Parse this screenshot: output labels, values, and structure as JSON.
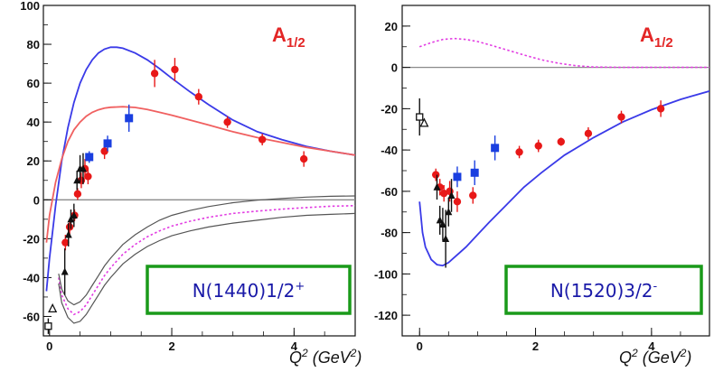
{
  "colors": {
    "theory_blue": "#3a3ae8",
    "theory_red": "#f06060",
    "theory_magenta": "#e23be2",
    "band_grey": "#555555",
    "data_red": "#e81818",
    "data_blue": "#1a3fe0",
    "data_black": "#111111",
    "label_box": "#1a9a1a",
    "label_text": "#1a1aa8",
    "annotation": "#e32626"
  },
  "chart_data": [
    {
      "type": "scatter",
      "panel": "left",
      "annotation": "A1/2",
      "annotation_main": "A",
      "annotation_sub": "1/2",
      "state_label": "N(1440)1/2+",
      "xlabel": "Q2 (GeV2)",
      "xlabel_parts": {
        "q": "Q",
        "q_sup": "2",
        "unit_open": " (GeV",
        "unit_sup": "2",
        "unit_close": ")"
      },
      "xlim": [
        -0.1,
        5.0
      ],
      "ylim": [
        -70,
        100
      ],
      "x_ticks": [
        0,
        2,
        4
      ],
      "y_ticks": [
        -60,
        -40,
        -20,
        0,
        20,
        40,
        60,
        80,
        100
      ],
      "zero_line": true,
      "series": [
        {
          "color": "blue",
          "style": "solid-line",
          "x": [
            -0.05,
            0.0,
            0.1,
            0.2,
            0.3,
            0.4,
            0.5,
            0.6,
            0.7,
            0.8,
            0.9,
            1.0,
            1.1,
            1.2,
            1.4,
            1.6,
            1.8,
            2.0,
            2.3,
            2.6,
            3.0,
            3.4,
            3.8,
            4.2,
            4.6,
            5.0
          ],
          "y": [
            -47,
            -30,
            -3,
            20,
            37,
            50,
            60,
            67,
            72,
            75.5,
            77.5,
            78.5,
            78.5,
            78,
            75.5,
            72,
            67.5,
            62.5,
            55.5,
            49,
            41,
            35,
            31,
            27.5,
            25,
            23
          ]
        },
        {
          "color": "red",
          "style": "solid-line",
          "x": [
            -0.05,
            0.0,
            0.1,
            0.2,
            0.3,
            0.4,
            0.5,
            0.6,
            0.7,
            0.8,
            0.9,
            1.0,
            1.2,
            1.4,
            1.6,
            1.8,
            2.0,
            2.3,
            2.6,
            3.0,
            3.4,
            3.8,
            4.2,
            4.6,
            5.0
          ],
          "y": [
            -22,
            -8,
            9,
            21,
            30,
            36,
            40,
            43,
            45,
            46.3,
            47.2,
            47.6,
            47.9,
            47.5,
            46.5,
            45,
            43.5,
            41,
            38.5,
            35,
            32,
            29.5,
            27,
            25,
            23
          ]
        },
        {
          "color": "magenta",
          "style": "dotted-line",
          "x": [
            0.15,
            0.2,
            0.3,
            0.4,
            0.5,
            0.6,
            0.7,
            0.8,
            0.9,
            1.0,
            1.2,
            1.4,
            1.6,
            1.8,
            2.0,
            2.3,
            2.6,
            3.0,
            3.4,
            3.8,
            4.2,
            4.6,
            5.0
          ],
          "y": [
            -40,
            -49,
            -56,
            -59,
            -57.5,
            -54,
            -49,
            -44,
            -39,
            -35,
            -28,
            -23,
            -19,
            -16,
            -13.5,
            -11,
            -9,
            -7,
            -5.8,
            -4.8,
            -4,
            -3.3,
            -3
          ]
        },
        {
          "color": "grey",
          "style": "band-upper",
          "x": [
            0.15,
            0.2,
            0.3,
            0.4,
            0.5,
            0.6,
            0.7,
            0.8,
            0.9,
            1.0,
            1.2,
            1.4,
            1.6,
            1.8,
            2.0,
            2.3,
            2.6,
            3.0,
            3.4,
            3.8,
            4.2,
            4.6,
            5.0
          ],
          "y": [
            -38,
            -46,
            -52,
            -54,
            -52.5,
            -49,
            -44,
            -39,
            -34,
            -30,
            -23,
            -18,
            -14,
            -10.5,
            -8,
            -5.5,
            -3.5,
            -1.5,
            -0.2,
            0.7,
            1.4,
            1.8,
            2
          ]
        },
        {
          "color": "grey",
          "style": "band-lower",
          "x": [
            0.15,
            0.2,
            0.3,
            0.4,
            0.5,
            0.6,
            0.7,
            0.8,
            0.9,
            1.0,
            1.2,
            1.4,
            1.6,
            1.8,
            2.0,
            2.3,
            2.6,
            3.0,
            3.4,
            3.8,
            4.2,
            4.6,
            5.0
          ],
          "y": [
            -43,
            -53,
            -60.5,
            -63.5,
            -62.5,
            -59,
            -54,
            -49,
            -44,
            -40,
            -33,
            -28,
            -24,
            -21,
            -18.5,
            -16,
            -14,
            -12,
            -10.5,
            -9,
            -8,
            -7.5,
            -7
          ]
        },
        {
          "color": "red",
          "style": "points",
          "x": [
            0.26,
            0.33,
            0.41,
            0.46,
            0.52,
            0.58,
            0.63,
            0.9,
            1.72,
            2.05,
            2.44,
            2.91,
            3.48,
            4.16
          ],
          "y": [
            -22,
            -14,
            -8,
            3,
            10,
            16,
            12,
            25,
            65,
            67,
            53,
            40,
            31,
            21
          ],
          "err": [
            4,
            4,
            3,
            3,
            4,
            5,
            4,
            4,
            7,
            6,
            4,
            3,
            3,
            4
          ]
        },
        {
          "color": "blue",
          "style": "squares",
          "x": [
            0.65,
            0.95,
            1.3
          ],
          "y": [
            22,
            29,
            42
          ],
          "err": [
            3,
            4,
            7
          ]
        },
        {
          "color": "black",
          "style": "triangles",
          "x": [
            0.25,
            0.31,
            0.35,
            0.4,
            0.45,
            0.5,
            0.55
          ],
          "y": [
            -37,
            -18,
            -10,
            -8,
            10,
            16,
            16
          ],
          "err": [
            12,
            6,
            5,
            6,
            5,
            7,
            8
          ]
        },
        {
          "color": "black",
          "style": "open-square",
          "x": [
            -0.02
          ],
          "y": [
            -65
          ],
          "err": [
            4
          ]
        },
        {
          "color": "black",
          "style": "open-triangle",
          "x": [
            0.05
          ],
          "y": [
            -56
          ],
          "err": [
            0
          ]
        }
      ]
    },
    {
      "type": "scatter",
      "panel": "right",
      "annotation": "A1/2",
      "annotation_main": "A",
      "annotation_sub": "1/2",
      "state_label": "N(1520)3/2-",
      "xlabel": "Q2 (GeV2)",
      "xlabel_parts": {
        "q": "Q",
        "q_sup": "2",
        "unit_open": " (GeV",
        "unit_sup": "2",
        "unit_close": ")"
      },
      "xlim": [
        -0.3,
        5.0
      ],
      "ylim": [
        -130,
        30
      ],
      "x_ticks": [
        0,
        2,
        4
      ],
      "y_ticks": [
        -120,
        -100,
        -80,
        -60,
        -40,
        -20,
        0,
        20
      ],
      "zero_line": true,
      "series": [
        {
          "color": "blue",
          "style": "solid-line",
          "x": [
            0.0,
            0.05,
            0.1,
            0.2,
            0.3,
            0.4,
            0.5,
            0.6,
            0.8,
            1.0,
            1.2,
            1.5,
            1.8,
            2.1,
            2.5,
            3.0,
            3.5,
            4.0,
            4.5,
            5.0
          ],
          "y": [
            -65,
            -80,
            -87,
            -93,
            -95.5,
            -96,
            -94.5,
            -92,
            -87,
            -81,
            -75,
            -66.5,
            -58,
            -51,
            -42.5,
            -34,
            -26.5,
            -20.5,
            -15.5,
            -11.5
          ]
        },
        {
          "color": "magenta",
          "style": "dotted-line",
          "x": [
            0.0,
            0.2,
            0.4,
            0.6,
            0.8,
            1.0,
            1.2,
            1.5,
            1.8,
            2.1,
            2.4,
            2.7,
            3.0,
            3.5,
            4.0,
            4.5,
            5.0
          ],
          "y": [
            10,
            12,
            13.5,
            14,
            13.5,
            12.5,
            11,
            8.5,
            6,
            3.7,
            2,
            0.8,
            0.2,
            0,
            0,
            0,
            0
          ]
        },
        {
          "color": "red",
          "style": "points",
          "x": [
            0.28,
            0.35,
            0.42,
            0.52,
            0.65,
            0.92,
            1.72,
            2.05,
            2.44,
            2.91,
            3.48,
            4.16
          ],
          "y": [
            -52,
            -58,
            -61,
            -60,
            -65,
            -62,
            -41,
            -38,
            -36,
            -32,
            -24,
            -20
          ],
          "err": [
            3,
            4,
            4,
            5,
            5,
            4,
            3,
            3,
            2,
            3,
            3,
            4
          ]
        },
        {
          "color": "blue",
          "style": "squares",
          "x": [
            0.65,
            0.95,
            1.3
          ],
          "y": [
            -53,
            -51,
            -39
          ],
          "err": [
            5,
            6,
            6
          ]
        },
        {
          "color": "black",
          "style": "triangles",
          "x": [
            0.3,
            0.35,
            0.4,
            0.45,
            0.5,
            0.55
          ],
          "y": [
            -58,
            -74,
            -76,
            -83,
            -70,
            -62
          ],
          "err": [
            6,
            7,
            8,
            14,
            7,
            8
          ]
        },
        {
          "color": "black",
          "style": "open-square",
          "x": [
            0.0
          ],
          "y": [
            -24
          ],
          "err": [
            9
          ]
        },
        {
          "color": "black",
          "style": "open-triangle",
          "x": [
            0.08
          ],
          "y": [
            -27
          ],
          "err": [
            0
          ]
        }
      ]
    }
  ]
}
